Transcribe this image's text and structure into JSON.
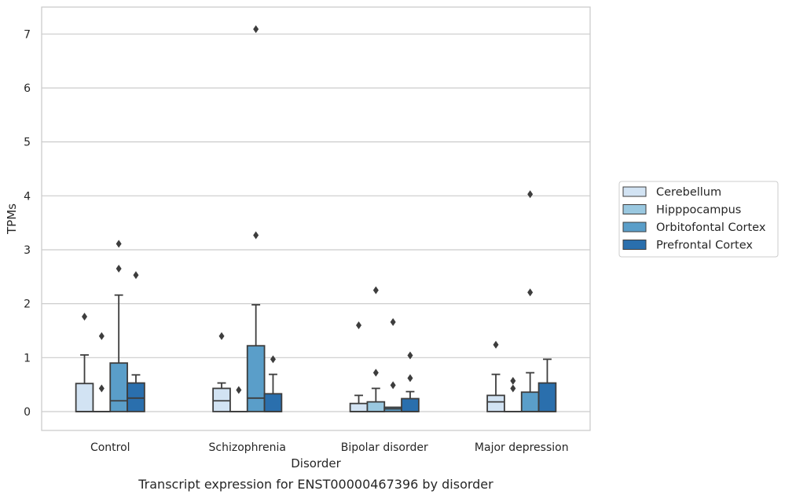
{
  "chart_data": {
    "type": "boxplot",
    "xlabel": "Disorder",
    "ylabel": "TPMs",
    "caption": "Transcript expression for ENST00000467396 by disorder",
    "categories": [
      "Control",
      "Schizophrenia",
      "Bipolar disorder",
      "Major depression"
    ],
    "ylim": [
      -0.35,
      7.5
    ],
    "yticks": [
      0,
      1,
      2,
      3,
      4,
      5,
      6,
      7
    ],
    "grid": true,
    "legend_position": "right",
    "series": [
      {
        "name": "Cerebellum",
        "color": "#d2e3f3",
        "boxes": [
          {
            "q1": 0,
            "median": 0,
            "q3": 0.52,
            "whisker_low": 0,
            "whisker_high": 1.05,
            "outliers": [
              1.76
            ]
          },
          {
            "q1": 0,
            "median": 0.2,
            "q3": 0.43,
            "whisker_low": 0,
            "whisker_high": 0.53,
            "outliers": [
              1.4
            ]
          },
          {
            "q1": 0,
            "median": 0,
            "q3": 0.15,
            "whisker_low": 0,
            "whisker_high": 0.3,
            "outliers": [
              1.6
            ]
          },
          {
            "q1": 0,
            "median": 0.18,
            "q3": 0.3,
            "whisker_low": 0,
            "whisker_high": 0.69,
            "outliers": [
              1.24
            ]
          }
        ]
      },
      {
        "name": "Hipppocampus",
        "color": "#9ac8e0",
        "boxes": [
          {
            "q1": 0,
            "median": 0,
            "q3": 0,
            "whisker_low": 0,
            "whisker_high": 0,
            "outliers": [
              0.43,
              1.4
            ]
          },
          {
            "q1": 0,
            "median": 0,
            "q3": 0,
            "whisker_low": 0,
            "whisker_high": 0,
            "outliers": [
              0.4
            ]
          },
          {
            "q1": 0,
            "median": 0,
            "q3": 0.18,
            "whisker_low": 0,
            "whisker_high": 0.43,
            "outliers": [
              0.72,
              2.25
            ]
          },
          {
            "q1": 0,
            "median": 0,
            "q3": 0,
            "whisker_low": 0,
            "whisker_high": 0,
            "outliers": [
              0.43,
              0.57
            ]
          }
        ]
      },
      {
        "name": "Orbitofontal Cortex",
        "color": "#5a9ec9",
        "boxes": [
          {
            "q1": 0,
            "median": 0.2,
            "q3": 0.9,
            "whisker_low": 0,
            "whisker_high": 2.16,
            "outliers": [
              2.65,
              3.11
            ]
          },
          {
            "q1": 0,
            "median": 0.25,
            "q3": 1.22,
            "whisker_low": 0,
            "whisker_high": 1.98,
            "outliers": [
              3.27,
              7.09
            ]
          },
          {
            "q1": 0,
            "median": 0.05,
            "q3": 0.08,
            "whisker_low": 0,
            "whisker_high": 0.08,
            "outliers": [
              0.49,
              1.66
            ]
          },
          {
            "q1": 0,
            "median": 0,
            "q3": 0.36,
            "whisker_low": 0,
            "whisker_high": 0.72,
            "outliers": [
              2.21,
              4.03
            ]
          }
        ]
      },
      {
        "name": "Prefrontal Cortex",
        "color": "#2a6fad",
        "boxes": [
          {
            "q1": 0,
            "median": 0.25,
            "q3": 0.53,
            "whisker_low": 0,
            "whisker_high": 0.68,
            "outliers": [
              2.53
            ]
          },
          {
            "q1": 0,
            "median": 0,
            "q3": 0.33,
            "whisker_low": 0,
            "whisker_high": 0.69,
            "outliers": [
              0.97
            ]
          },
          {
            "q1": 0,
            "median": 0,
            "q3": 0.24,
            "whisker_low": 0,
            "whisker_high": 0.37,
            "outliers": [
              0.62,
              1.04
            ]
          },
          {
            "q1": 0,
            "median": 0,
            "q3": 0.53,
            "whisker_low": 0,
            "whisker_high": 0.97,
            "outliers": []
          }
        ]
      }
    ]
  }
}
